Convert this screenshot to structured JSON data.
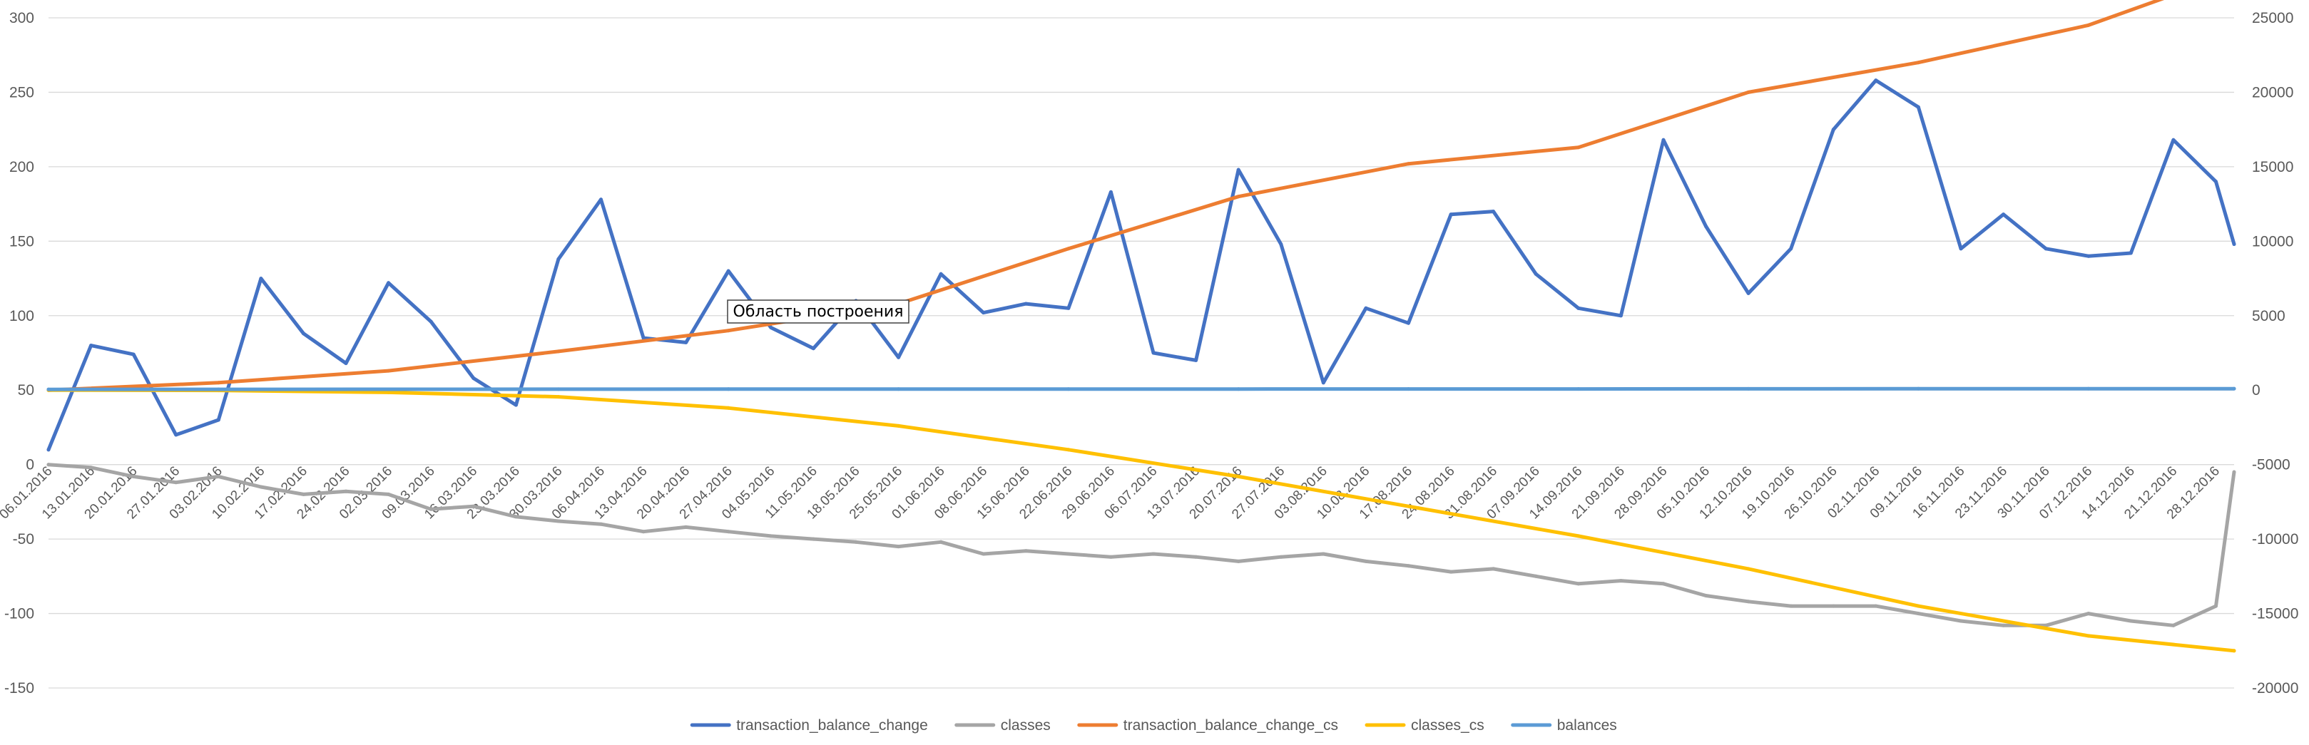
{
  "chart_data": {
    "type": "line",
    "tooltip": "Область построения",
    "y_left": {
      "min": -150,
      "max": 300,
      "step": 50
    },
    "y_right": {
      "min": -20000,
      "max": 25000,
      "step": 5000
    },
    "x_tick_labels": [
      "06.01.2016",
      "13.01.2016",
      "20.01.2016",
      "27.01.2016",
      "03.02.2016",
      "10.02.2016",
      "17.02.2016",
      "24.02.2016",
      "02.03.2016",
      "09.03.2016",
      "16.03.2016",
      "23.03.2016",
      "30.03.2016",
      "06.04.2016",
      "13.04.2016",
      "20.04.2016",
      "27.04.2016",
      "04.05.2016",
      "11.05.2016",
      "18.05.2016",
      "25.05.2016",
      "01.06.2016",
      "08.06.2016",
      "15.06.2016",
      "22.06.2016",
      "29.06.2016",
      "06.07.2016",
      "13.07.2016",
      "20.07.2016",
      "27.07.2016",
      "03.08.2016",
      "10.08.2016",
      "17.08.2016",
      "24.08.2016",
      "31.08.2016",
      "07.09.2016",
      "14.09.2016",
      "21.09.2016",
      "28.09.2016",
      "05.10.2016",
      "12.10.2016",
      "19.10.2016",
      "26.10.2016",
      "02.11.2016",
      "09.11.2016",
      "16.11.2016",
      "23.11.2016",
      "30.11.2016",
      "07.12.2016",
      "14.12.2016",
      "21.12.2016",
      "28.12.2016"
    ],
    "x_start": "06.01.2016",
    "x_end": "31.12.2016",
    "series": [
      {
        "name": "transaction_balance_change",
        "axis": "left",
        "color": "#4472C4",
        "x": [
          "06.01.2016",
          "13.01.2016",
          "20.01.2016",
          "27.01.2016",
          "03.02.2016",
          "10.02.2016",
          "17.02.2016",
          "24.02.2016",
          "02.03.2016",
          "09.03.2016",
          "16.03.2016",
          "23.03.2016",
          "30.03.2016",
          "06.04.2016",
          "13.04.2016",
          "20.04.2016",
          "27.04.2016",
          "04.05.2016",
          "11.05.2016",
          "18.05.2016",
          "25.05.2016",
          "01.06.2016",
          "08.06.2016",
          "15.06.2016",
          "22.06.2016",
          "29.06.2016",
          "06.07.2016",
          "13.07.2016",
          "20.07.2016",
          "27.07.2016",
          "03.08.2016",
          "10.08.2016",
          "17.08.2016",
          "24.08.2016",
          "31.08.2016",
          "07.09.2016",
          "14.09.2016",
          "21.09.2016",
          "28.09.2016",
          "05.10.2016",
          "12.10.2016",
          "19.10.2016",
          "26.10.2016",
          "02.11.2016",
          "09.11.2016",
          "16.11.2016",
          "23.11.2016",
          "30.11.2016",
          "07.12.2016",
          "14.12.2016",
          "21.12.2016",
          "28.12.2016",
          "31.12.2016"
        ],
        "values": [
          10,
          80,
          74,
          20,
          30,
          125,
          88,
          68,
          122,
          96,
          58,
          40,
          138,
          178,
          85,
          82,
          130,
          92,
          78,
          110,
          72,
          128,
          102,
          108,
          105,
          183,
          75,
          70,
          198,
          148,
          55,
          105,
          95,
          168,
          170,
          128,
          105,
          100,
          218,
          160,
          115,
          145,
          225,
          258,
          240,
          145,
          168,
          145,
          140,
          142,
          218,
          190,
          148
        ]
      },
      {
        "name": "classes",
        "axis": "left",
        "color": "#A5A5A5",
        "x": [
          "06.01.2016",
          "13.01.2016",
          "20.01.2016",
          "27.01.2016",
          "03.02.2016",
          "10.02.2016",
          "17.02.2016",
          "24.02.2016",
          "02.03.2016",
          "09.03.2016",
          "16.03.2016",
          "23.03.2016",
          "30.03.2016",
          "06.04.2016",
          "13.04.2016",
          "20.04.2016",
          "27.04.2016",
          "04.05.2016",
          "11.05.2016",
          "18.05.2016",
          "25.05.2016",
          "01.06.2016",
          "08.06.2016",
          "15.06.2016",
          "22.06.2016",
          "29.06.2016",
          "06.07.2016",
          "13.07.2016",
          "20.07.2016",
          "27.07.2016",
          "03.08.2016",
          "10.08.2016",
          "17.08.2016",
          "24.08.2016",
          "31.08.2016",
          "07.09.2016",
          "14.09.2016",
          "21.09.2016",
          "28.09.2016",
          "05.10.2016",
          "12.10.2016",
          "19.10.2016",
          "26.10.2016",
          "02.11.2016",
          "09.11.2016",
          "16.11.2016",
          "23.11.2016",
          "30.11.2016",
          "07.12.2016",
          "14.12.2016",
          "21.12.2016",
          "28.12.2016",
          "31.12.2016"
        ],
        "values": [
          0,
          -2,
          -8,
          -12,
          -8,
          -15,
          -20,
          -18,
          -20,
          -30,
          -28,
          -35,
          -38,
          -40,
          -45,
          -42,
          -45,
          -48,
          -50,
          -52,
          -55,
          -52,
          -60,
          -58,
          -60,
          -62,
          -60,
          -62,
          -65,
          -62,
          -60,
          -65,
          -68,
          -72,
          -70,
          -75,
          -80,
          -78,
          -80,
          -88,
          -92,
          -95,
          -95,
          -95,
          -100,
          -105,
          -108,
          -108,
          -100,
          -105,
          -108,
          -95,
          -5
        ]
      },
      {
        "name": "transaction_balance_change_cs",
        "axis": "right",
        "color": "#ED7D31",
        "x": [
          "06.01.2016",
          "03.02.2016",
          "02.03.2016",
          "30.03.2016",
          "27.04.2016",
          "25.05.2016",
          "22.06.2016",
          "20.07.2016",
          "17.08.2016",
          "14.09.2016",
          "12.10.2016",
          "09.11.2016",
          "07.12.2016",
          "31.12.2016"
        ],
        "values": [
          0,
          500,
          1300,
          2600,
          4000,
          5800,
          9500,
          13000,
          15200,
          16300,
          20000,
          22000,
          24500,
          28000
        ]
      },
      {
        "name": "classes_cs",
        "axis": "right",
        "color": "#FFC000",
        "x": [
          "06.01.2016",
          "03.02.2016",
          "02.03.2016",
          "30.03.2016",
          "27.04.2016",
          "25.05.2016",
          "22.06.2016",
          "20.07.2016",
          "17.08.2016",
          "14.09.2016",
          "12.10.2016",
          "09.11.2016",
          "07.12.2016",
          "31.12.2016"
        ],
        "values": [
          0,
          -20,
          -150,
          -450,
          -1200,
          -2400,
          -4000,
          -5800,
          -7800,
          -9800,
          -12000,
          -14500,
          -16500,
          -17500
        ]
      },
      {
        "name": "balances",
        "axis": "right",
        "color": "#5B9BD5",
        "x": [
          "06.01.2016",
          "03.02.2016",
          "02.03.2016",
          "30.03.2016",
          "27.04.2016",
          "25.05.2016",
          "22.06.2016",
          "20.07.2016",
          "17.08.2016",
          "14.09.2016",
          "12.10.2016",
          "09.11.2016",
          "07.12.2016",
          "31.12.2016"
        ],
        "values": [
          50,
          55,
          60,
          65,
          70,
          72,
          75,
          75,
          78,
          80,
          85,
          92,
          95,
          98
        ]
      }
    ]
  }
}
